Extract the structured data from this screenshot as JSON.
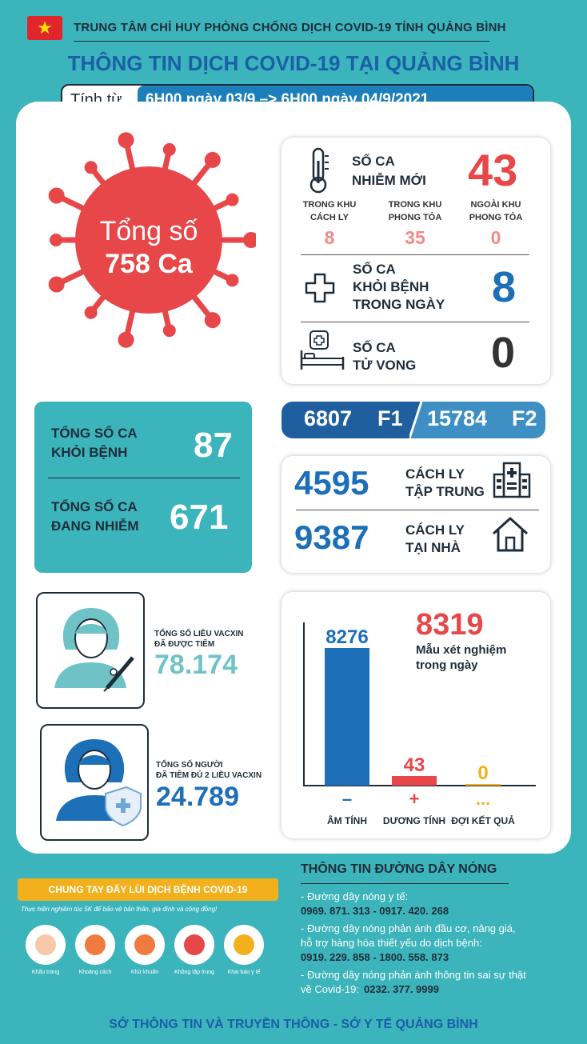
{
  "header": {
    "org": "TRUNG TÂM CHỈ HUY PHÒNG CHỐNG DỊCH COVID-19 TỈNH QUẢNG BÌNH",
    "title": "THÔNG TIN DỊCH COVID-19 TẠI QUẢNG BÌNH",
    "period_label": "Tính từ",
    "period_value": "6H00 ngày 03/9 –> 6H00 ngày 04/9/2021"
  },
  "total": {
    "line1": "Tổng số",
    "line2": "758 Ca"
  },
  "new_cases": {
    "label_1": "SỐ CA",
    "label_2": "NHIỄM MỚI",
    "value": "43",
    "breakdown": [
      {
        "label_1": "TRONG KHU",
        "label_2": "CÁCH LY",
        "value": "8"
      },
      {
        "label_1": "TRONG KHU",
        "label_2": "PHONG TỎA",
        "value": "35"
      },
      {
        "label_1": "NGOÀI KHU",
        "label_2": "PHONG TỎA",
        "value": "0"
      }
    ]
  },
  "recovered_today": {
    "label_1": "SỐ CA",
    "label_2": "KHỎI BỆNH",
    "label_3": "TRONG NGÀY",
    "value": "8"
  },
  "deaths": {
    "label_1": "SỐ CA",
    "label_2": "TỬ VONG",
    "value": "0"
  },
  "totals": {
    "recovered_label_1": "TỔNG SỐ CA",
    "recovered_label_2": "KHỎI BỆNH",
    "recovered_value": "87",
    "active_label_1": "TỔNG SỐ CA",
    "active_label_2": "ĐANG NHIỄM",
    "active_value": "671"
  },
  "contacts": {
    "f1_value": "6807",
    "f1_label": "F1",
    "f2_value": "15784",
    "f2_label": "F2"
  },
  "isolation": {
    "central_value": "4595",
    "central_label_1": "CÁCH LY",
    "central_label_2": "TẬP TRUNG",
    "home_value": "9387",
    "home_label_1": "CÁCH LY",
    "home_label_2": "TẠI NHÀ"
  },
  "vaccine": {
    "doses_label_1": "TỔNG SỐ LIỀU VACXIN",
    "doses_label_2": "ĐÃ ĐƯỢC TIÊM",
    "doses_value": "78.174",
    "full_label_1": "TỔNG SỐ NGƯỜI",
    "full_label_2": "ĐÃ TIÊM ĐỦ 2 LIỀU VACXIN",
    "full_value": "24.789"
  },
  "tests": {
    "total_value": "8319",
    "label_1": "Mẫu xét nghiệm",
    "label_2": "trong ngày"
  },
  "chart_data": {
    "type": "bar",
    "categories": [
      "ÂM TÍNH",
      "DƯƠNG TÍNH",
      "ĐỢI KẾT QUẢ"
    ],
    "symbols": [
      "–",
      "+",
      "..."
    ],
    "values": [
      8276,
      43,
      0
    ],
    "colors": [
      "#1d6fb8",
      "#e8474a",
      "#f2b11c"
    ],
    "title": "",
    "xlabel": "",
    "ylabel": ""
  },
  "campaign": {
    "title": "CHUNG TAY ĐẨY LÙI DỊCH BỆNH COVID-19",
    "subtitle": "Thực hiện nghiêm túc 5K để bảo vệ bản thân, gia đình và cộng đồng!",
    "items": [
      {
        "label": "Khẩu trang",
        "icon": "mask-icon"
      },
      {
        "label": "Khoảng cách",
        "icon": "distance-icon"
      },
      {
        "label": "Khử khuẩn",
        "icon": "handwash-icon"
      },
      {
        "label": "Không tập trung",
        "icon": "no-gathering-icon"
      },
      {
        "label": "Khai báo y tế",
        "icon": "health-declaration-icon"
      }
    ]
  },
  "hotline": {
    "title": "THÔNG TIN ĐƯỜNG DÂY NÓNG",
    "medical_label": "- Đường dây nóng y tế:",
    "medical_numbers": "0969. 871. 313   -   0917. 420. 268",
    "price_label_1": "- Đường dây nóng phản ánh đầu cơ, nâng giá,",
    "price_label_2": "hỗ trợ hàng hóa thiết yếu do dịch bệnh:",
    "price_numbers": "0919. 229. 858   -   1800. 558. 873",
    "fake_label_1": "- Đường dây nóng phản ánh thông tin sai sự thật",
    "fake_label_2": "về Covid-19:",
    "fake_number": "0232. 377. 9999"
  },
  "footer": "SỞ THÔNG TIN VÀ TRUYỀN THÔNG - SỞ Y TẾ QUẢNG BÌNH"
}
